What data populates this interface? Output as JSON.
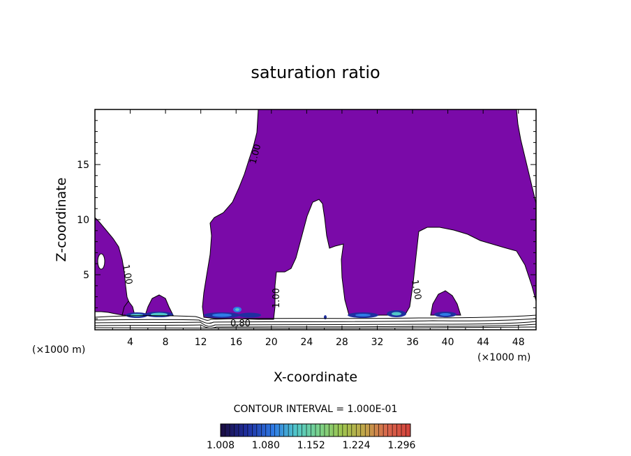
{
  "chart_data": {
    "type": "contour",
    "title": "saturation ratio",
    "xlabel": "X-coordinate",
    "ylabel": "Z-coordinate",
    "x_unit": "(×1000 m)",
    "xlim": [
      0,
      50
    ],
    "ylim": [
      0,
      20
    ],
    "x_ticks": [
      4,
      8,
      12,
      16,
      20,
      24,
      28,
      32,
      36,
      40,
      44,
      48
    ],
    "y_ticks": [
      5,
      10,
      15
    ],
    "contour_interval_text": "CONTOUR INTERVAL = 1.000E-01",
    "contour_labels": [
      {
        "text": "1.00",
        "x": 18.1,
        "z": 16.0
      },
      {
        "text": "1.00",
        "x": 3.5,
        "z": 4.3
      },
      {
        "text": "1.00",
        "x": 20.3,
        "z": 2.8
      },
      {
        "text": "1.00",
        "x": 36.0,
        "z": 3.1
      },
      {
        "text": "0.80",
        "x": 17.1,
        "z": 0.6
      }
    ],
    "colorbar": {
      "min": 1.008,
      "max": 1.31,
      "tick_labels": [
        "1.008",
        "1.080",
        "1.152",
        "1.224",
        "1.296"
      ],
      "colors": [
        "#1a0b3d",
        "#1f2fa0",
        "#2f7be6",
        "#52c8c8",
        "#7ad28a",
        "#9ec44e",
        "#c2a54a",
        "#d9654c",
        "#d2403a"
      ]
    },
    "fill_color": "#7a0aa8",
    "saturated_regions": [
      {
        "name": "main",
        "x_range": [
          12.5,
          50
        ],
        "z_range": [
          0.9,
          19.8
        ]
      },
      {
        "name": "left",
        "x_range": [
          0,
          6
        ],
        "z_range": [
          0.9,
          10.3
        ]
      },
      {
        "name": "small-8",
        "x_range": [
          6.2,
          9.2
        ],
        "z_range": [
          1.0,
          3.0
        ]
      },
      {
        "name": "small-40",
        "x_range": [
          38.4,
          41.2
        ],
        "z_range": [
          1.0,
          3.4
        ]
      }
    ]
  }
}
